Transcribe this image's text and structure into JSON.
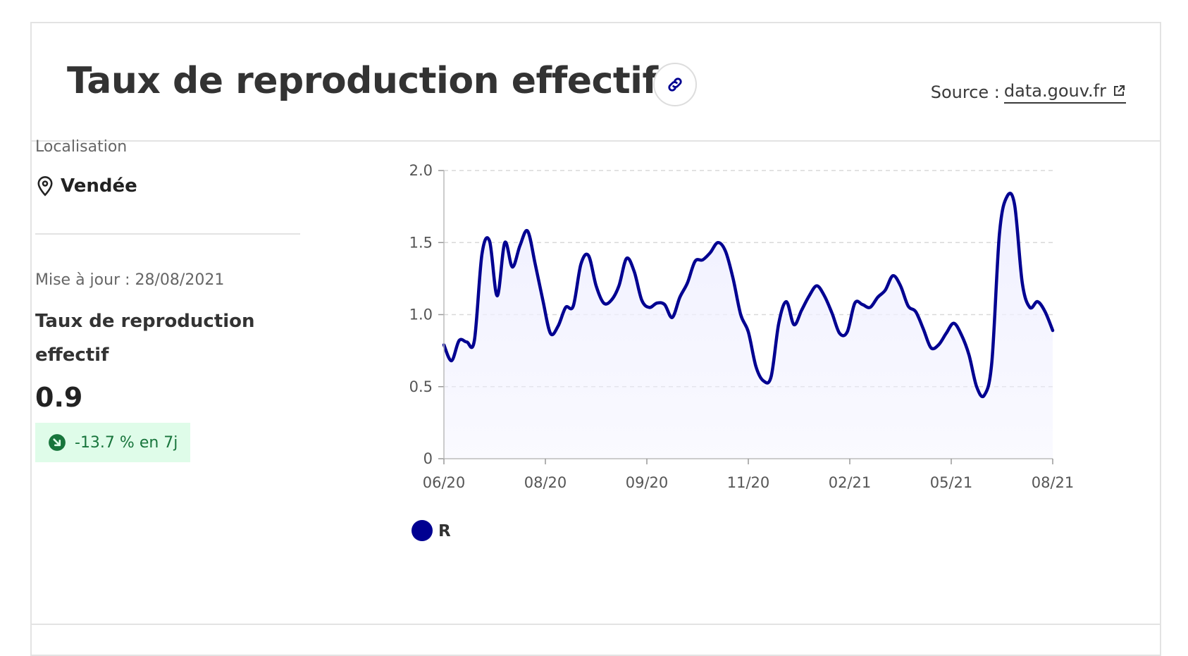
{
  "header": {
    "title": "Taux de reproduction effectif",
    "source_prefix": "Source :",
    "source_link": "data.gouv.fr"
  },
  "panel": {
    "location_label": "Localisation",
    "location_value": "Vendée",
    "update_text": "Mise à jour : 28/08/2021",
    "metric_title": "Taux de reproduction effectif",
    "metric_value": "0.9",
    "trend_text": "-13.7 % en 7j"
  },
  "colors": {
    "line": "#000091",
    "fill": "#f0f0ff",
    "badge_bg": "#dffce9",
    "badge_text": "#18753c"
  },
  "chart_data": {
    "type": "area",
    "ylim": [
      0,
      2.0
    ],
    "yticks": [
      0,
      0.5,
      1.0,
      1.5,
      2.0
    ],
    "ytick_labels": [
      "0",
      "0.5",
      "1.0",
      "1.5",
      "2.0"
    ],
    "xtick_labels": [
      "06/20",
      "08/20",
      "09/20",
      "11/20",
      "02/21",
      "05/21",
      "08/21"
    ],
    "grid": true,
    "legend_position": "bottom-left",
    "series": [
      {
        "name": "R",
        "values": [
          0.79,
          0.68,
          0.82,
          0.81,
          0.82,
          1.42,
          1.51,
          1.13,
          1.5,
          1.33,
          1.48,
          1.58,
          1.35,
          1.1,
          0.87,
          0.92,
          1.05,
          1.06,
          1.35,
          1.41,
          1.2,
          1.08,
          1.1,
          1.2,
          1.39,
          1.3,
          1.1,
          1.05,
          1.08,
          1.07,
          0.98,
          1.12,
          1.22,
          1.37,
          1.38,
          1.43,
          1.5,
          1.44,
          1.25,
          1.0,
          0.88,
          0.64,
          0.54,
          0.57,
          0.94,
          1.09,
          0.93,
          1.03,
          1.13,
          1.2,
          1.13,
          1.01,
          0.87,
          0.88,
          1.08,
          1.07,
          1.05,
          1.12,
          1.17,
          1.27,
          1.2,
          1.06,
          1.02,
          0.9,
          0.77,
          0.79,
          0.87,
          0.94,
          0.86,
          0.72,
          0.5,
          0.44,
          0.67,
          1.56,
          1.82,
          1.76,
          1.22,
          1.05,
          1.09,
          1.02,
          0.89
        ]
      }
    ]
  }
}
